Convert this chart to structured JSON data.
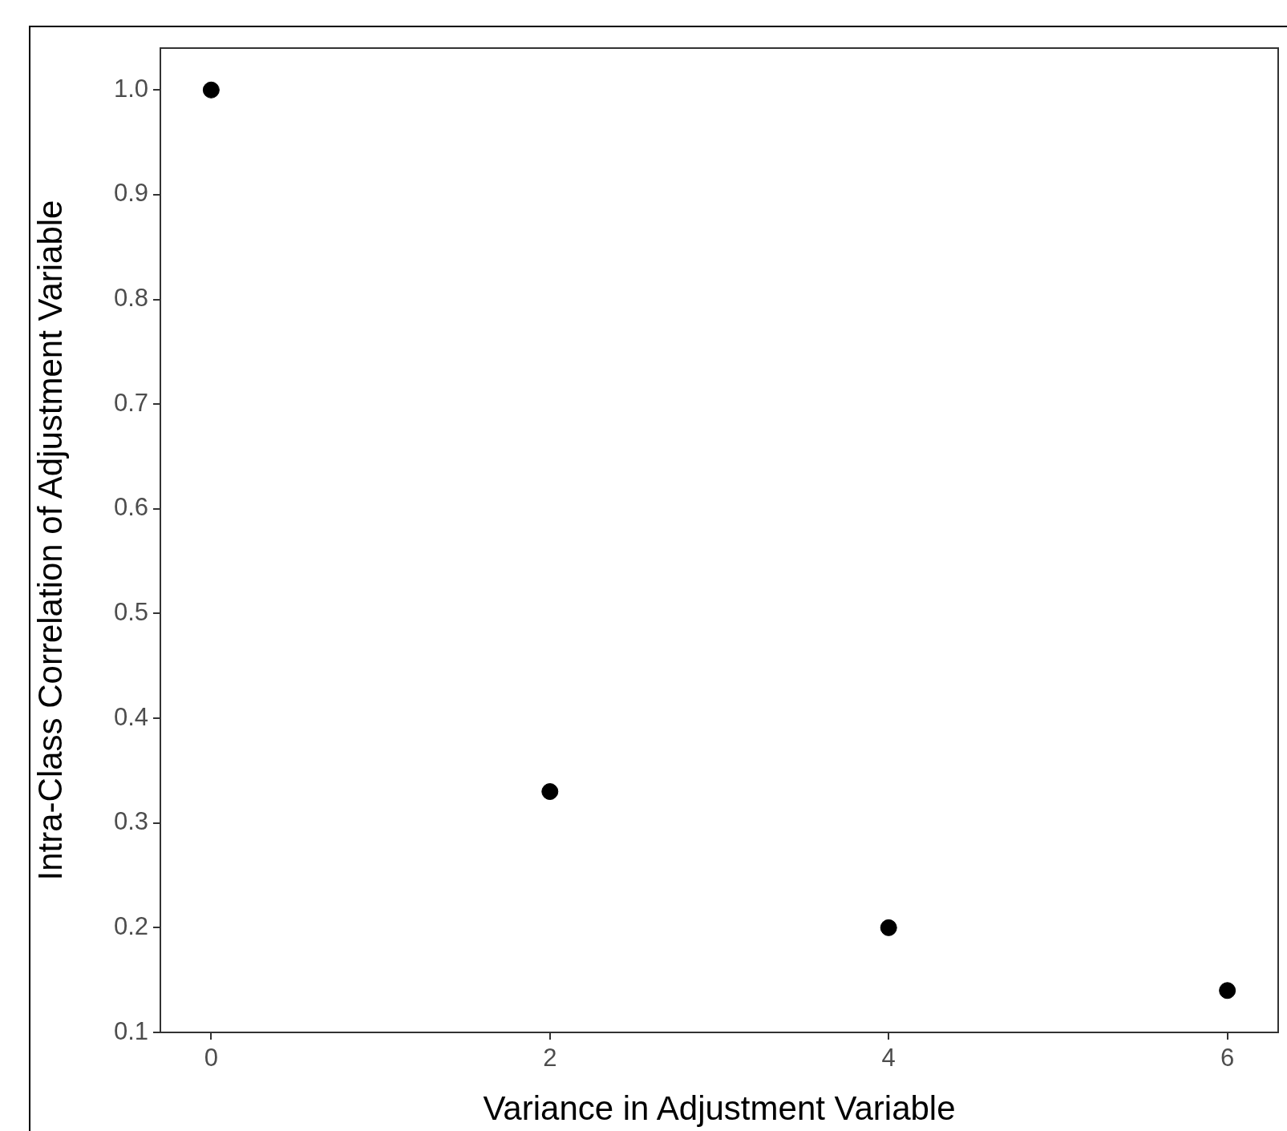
{
  "chart_data": {
    "type": "scatter",
    "xlabel": "Variance in Adjustment Variable",
    "ylabel": "Intra-Class Correlation of Adjustment Variable",
    "x": [
      0,
      2,
      4,
      6
    ],
    "series": [
      {
        "color": "#000000",
        "values": [
          1.0,
          0.33,
          0.2,
          0.14
        ]
      }
    ],
    "xlim": [
      -0.3,
      6.3
    ],
    "xticks": [
      0,
      2,
      4,
      6
    ],
    "ylim": [
      0.1,
      1.04
    ],
    "yticks": [
      {
        "value": 0.1,
        "label": "0.1"
      },
      {
        "value": 0.2,
        "label": "0.2"
      },
      {
        "value": 0.3,
        "label": "0.3"
      },
      {
        "value": 0.4,
        "label": "0.4"
      },
      {
        "value": 0.5,
        "label": "0.5"
      },
      {
        "value": 0.6,
        "label": "0.6"
      },
      {
        "value": 0.7,
        "label": "0.7"
      },
      {
        "value": 0.8,
        "label": "0.8"
      },
      {
        "value": 0.9,
        "label": "0.9"
      },
      {
        "value": 1.0,
        "label": "1.0"
      }
    ],
    "grid": false,
    "legend": false,
    "marker": "circle"
  }
}
